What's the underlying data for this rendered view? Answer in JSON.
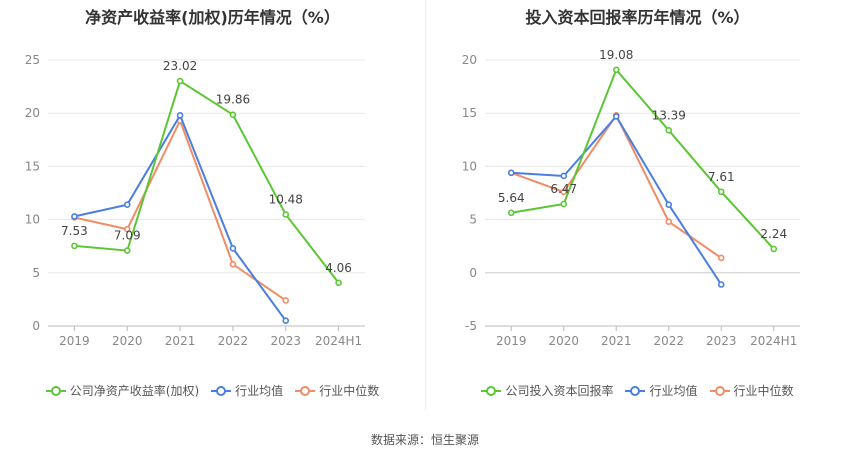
{
  "source": "数据来源：恒生聚源",
  "chart_data": [
    {
      "type": "line",
      "title": "净资产收益率(加权)历年情况（%）",
      "categories": [
        "2019",
        "2020",
        "2021",
        "2022",
        "2023",
        "2024H1"
      ],
      "ylim": [
        0,
        25
      ],
      "yticks": [
        "0",
        "5",
        "10",
        "15",
        "20",
        "25"
      ],
      "grid": true,
      "legend": "bottom",
      "series": [
        {
          "name": "公司净资产收益率(加权)",
          "color": "#5cc635",
          "values": [
            7.53,
            7.09,
            23.02,
            19.86,
            10.48,
            4.06
          ],
          "labels": [
            "7.53",
            "7.09",
            "23.02",
            "19.86",
            "10.48",
            "4.06"
          ]
        },
        {
          "name": "行业均值",
          "color": "#4a7ee0",
          "values": [
            10.3,
            11.4,
            19.8,
            7.3,
            0.5,
            null
          ]
        },
        {
          "name": "行业中位数",
          "color": "#f08c66",
          "values": [
            10.2,
            9.1,
            19.3,
            5.8,
            2.4,
            null
          ]
        }
      ]
    },
    {
      "type": "line",
      "title": "投入资本回报率历年情况（%）",
      "categories": [
        "2019",
        "2020",
        "2021",
        "2022",
        "2023",
        "2024H1"
      ],
      "ylim": [
        -5,
        20
      ],
      "yticks": [
        "-5",
        "0",
        "5",
        "10",
        "15",
        "20"
      ],
      "grid": true,
      "legend": "bottom",
      "series": [
        {
          "name": "公司投入资本回报率",
          "color": "#5cc635",
          "values": [
            5.64,
            6.47,
            19.08,
            13.39,
            7.61,
            2.24
          ],
          "labels": [
            "5.64",
            "6.47",
            "19.08",
            "13.39",
            "7.61",
            "2.24"
          ]
        },
        {
          "name": "行业均值",
          "color": "#4a7ee0",
          "values": [
            9.4,
            9.1,
            14.7,
            6.4,
            -1.1,
            null
          ]
        },
        {
          "name": "行业中位数",
          "color": "#f08c66",
          "values": [
            9.4,
            7.6,
            14.8,
            4.8,
            1.4,
            null
          ]
        }
      ]
    }
  ]
}
